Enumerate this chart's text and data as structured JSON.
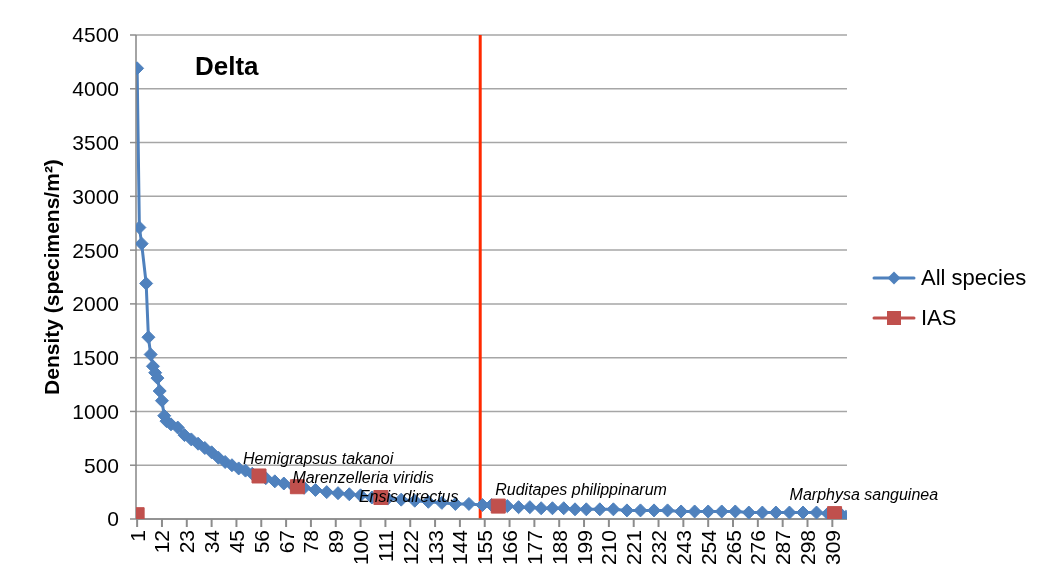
{
  "chart_data": {
    "type": "line",
    "title": "Delta",
    "ylabel": "Density (specimens/m²)",
    "xlim": [
      0.5,
      315.5
    ],
    "xticks": [
      1,
      12,
      23,
      34,
      45,
      56,
      67,
      78,
      89,
      100,
      111,
      122,
      133,
      144,
      155,
      166,
      177,
      188,
      199,
      210,
      221,
      232,
      243,
      254,
      265,
      276,
      287,
      298,
      309
    ],
    "ylim": [
      0,
      4500
    ],
    "yticks": [
      0,
      500,
      1000,
      1500,
      2000,
      2500,
      3000,
      3500,
      4000,
      4500
    ],
    "grid": "y",
    "legend": "right",
    "series": [
      {
        "name": "All species",
        "type": "line",
        "color": "#4f81bd",
        "marker": "diamond",
        "x": [
          1,
          2,
          3,
          5,
          6,
          7,
          8,
          9,
          10,
          11,
          12,
          13,
          14,
          16,
          19,
          22,
          25,
          28,
          31,
          34,
          37,
          40,
          43,
          46,
          49,
          52,
          58,
          62,
          66,
          70,
          75,
          80,
          85,
          90,
          95,
          100,
          105,
          112,
          118,
          124,
          130,
          136,
          142,
          148,
          154,
          158,
          165,
          170,
          175,
          180,
          185,
          190,
          195,
          200,
          206,
          212,
          218,
          224,
          230,
          236,
          242,
          248,
          254,
          260,
          266,
          272,
          278,
          284,
          290,
          296,
          302,
          307,
          313,
          315
        ],
        "values": [
          4190,
          2710,
          2560,
          2190,
          1690,
          1530,
          1420,
          1360,
          1310,
          1190,
          1100,
          960,
          910,
          880,
          850,
          780,
          740,
          700,
          660,
          620,
          570,
          530,
          500,
          470,
          450,
          420,
          380,
          350,
          330,
          310,
          290,
          270,
          250,
          240,
          230,
          220,
          200,
          190,
          180,
          170,
          160,
          150,
          140,
          140,
          130,
          130,
          120,
          110,
          110,
          100,
          100,
          100,
          90,
          90,
          90,
          90,
          80,
          80,
          80,
          80,
          70,
          70,
          70,
          70,
          70,
          60,
          60,
          60,
          60,
          60,
          60,
          50,
          40,
          20
        ]
      },
      {
        "name": "IAS",
        "type": "scatter",
        "color": "#c0504d",
        "marker": "square",
        "x": [
          1,
          55,
          72,
          109,
          161,
          310
        ],
        "values": [
          40,
          400,
          300,
          200,
          120,
          50
        ]
      }
    ],
    "ref_lines": [
      {
        "axis": "x",
        "value": 153,
        "color": "#ff2a00"
      }
    ],
    "annotations": [
      {
        "text": "Hemigrapsus takanoi",
        "x": 55,
        "y": 400
      },
      {
        "text": "Marenzelleria viridis",
        "x": 72,
        "y": 300
      },
      {
        "text": "Ensis directus",
        "x": 109,
        "y": 200
      },
      {
        "text": "Ruditapes philippinarum",
        "x": 161,
        "y": 120
      },
      {
        "text": "Marphysa sanguinea",
        "x": 310,
        "y": 50
      }
    ]
  }
}
